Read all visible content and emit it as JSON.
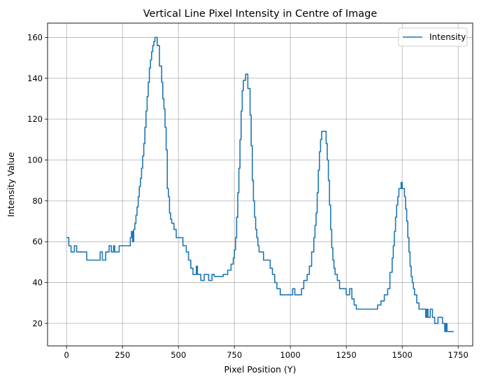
{
  "chart_data": {
    "type": "line",
    "title": "Vertical Line Pixel Intensity in Centre of Image",
    "xlabel": "Pixel Position (Y)",
    "ylabel": "Intensity Value",
    "xlim": [
      -85,
      1815
    ],
    "ylim": [
      9,
      167
    ],
    "xticks": [
      0,
      250,
      500,
      750,
      1000,
      1250,
      1500,
      1750
    ],
    "yticks": [
      20,
      40,
      60,
      80,
      100,
      120,
      140,
      160
    ],
    "grid": true,
    "legend_position": "top-right",
    "series": [
      {
        "name": "Intensity",
        "color": "#1f77b4",
        "step_points": [
          [
            0,
            62
          ],
          [
            10,
            62
          ],
          [
            10,
            58
          ],
          [
            20,
            58
          ],
          [
            20,
            55
          ],
          [
            35,
            55
          ],
          [
            35,
            58
          ],
          [
            45,
            58
          ],
          [
            45,
            55
          ],
          [
            90,
            55
          ],
          [
            90,
            51
          ],
          [
            150,
            51
          ],
          [
            150,
            55
          ],
          [
            160,
            55
          ],
          [
            160,
            51
          ],
          [
            175,
            51
          ],
          [
            175,
            55
          ],
          [
            190,
            55
          ],
          [
            190,
            58
          ],
          [
            200,
            58
          ],
          [
            200,
            55
          ],
          [
            210,
            55
          ],
          [
            210,
            58
          ],
          [
            215,
            58
          ],
          [
            215,
            55
          ],
          [
            235,
            55
          ],
          [
            235,
            58
          ],
          [
            285,
            58
          ],
          [
            285,
            62
          ],
          [
            290,
            62
          ],
          [
            290,
            65
          ],
          [
            295,
            65
          ],
          [
            295,
            60
          ],
          [
            300,
            60
          ],
          [
            300,
            66
          ],
          [
            305,
            66
          ],
          [
            305,
            69
          ],
          [
            310,
            69
          ],
          [
            310,
            73
          ],
          [
            315,
            73
          ],
          [
            315,
            77
          ],
          [
            320,
            77
          ],
          [
            320,
            82
          ],
          [
            325,
            82
          ],
          [
            325,
            87
          ],
          [
            330,
            87
          ],
          [
            330,
            91
          ],
          [
            335,
            91
          ],
          [
            335,
            96
          ],
          [
            340,
            96
          ],
          [
            340,
            102
          ],
          [
            345,
            102
          ],
          [
            345,
            108
          ],
          [
            350,
            108
          ],
          [
            350,
            116
          ],
          [
            355,
            116
          ],
          [
            355,
            124
          ],
          [
            360,
            124
          ],
          [
            360,
            131
          ],
          [
            365,
            131
          ],
          [
            365,
            138
          ],
          [
            370,
            138
          ],
          [
            370,
            145
          ],
          [
            375,
            145
          ],
          [
            375,
            149
          ],
          [
            380,
            149
          ],
          [
            380,
            153
          ],
          [
            385,
            153
          ],
          [
            385,
            156
          ],
          [
            390,
            156
          ],
          [
            390,
            158
          ],
          [
            395,
            158
          ],
          [
            395,
            160
          ],
          [
            405,
            160
          ],
          [
            405,
            156
          ],
          [
            415,
            156
          ],
          [
            415,
            146
          ],
          [
            425,
            146
          ],
          [
            425,
            138
          ],
          [
            430,
            138
          ],
          [
            430,
            130
          ],
          [
            435,
            130
          ],
          [
            435,
            125
          ],
          [
            440,
            125
          ],
          [
            440,
            116
          ],
          [
            445,
            116
          ],
          [
            445,
            105
          ],
          [
            450,
            105
          ],
          [
            450,
            86
          ],
          [
            455,
            86
          ],
          [
            455,
            82
          ],
          [
            460,
            82
          ],
          [
            460,
            74
          ],
          [
            465,
            74
          ],
          [
            465,
            71
          ],
          [
            470,
            71
          ],
          [
            470,
            69
          ],
          [
            480,
            69
          ],
          [
            480,
            66
          ],
          [
            490,
            66
          ],
          [
            490,
            62
          ],
          [
            520,
            62
          ],
          [
            520,
            58
          ],
          [
            535,
            58
          ],
          [
            535,
            55
          ],
          [
            545,
            55
          ],
          [
            545,
            51
          ],
          [
            555,
            51
          ],
          [
            555,
            47
          ],
          [
            565,
            47
          ],
          [
            565,
            44
          ],
          [
            580,
            44
          ],
          [
            580,
            48
          ],
          [
            585,
            48
          ],
          [
            585,
            44
          ],
          [
            600,
            44
          ],
          [
            600,
            41
          ],
          [
            615,
            41
          ],
          [
            615,
            44
          ],
          [
            635,
            44
          ],
          [
            635,
            41
          ],
          [
            650,
            41
          ],
          [
            650,
            44
          ],
          [
            660,
            44
          ],
          [
            660,
            43
          ],
          [
            700,
            43
          ],
          [
            700,
            44
          ],
          [
            720,
            44
          ],
          [
            720,
            46
          ],
          [
            735,
            46
          ],
          [
            735,
            49
          ],
          [
            745,
            49
          ],
          [
            745,
            52
          ],
          [
            750,
            52
          ],
          [
            750,
            56
          ],
          [
            755,
            56
          ],
          [
            755,
            62
          ],
          [
            760,
            62
          ],
          [
            760,
            72
          ],
          [
            765,
            72
          ],
          [
            765,
            84
          ],
          [
            770,
            84
          ],
          [
            770,
            96
          ],
          [
            775,
            96
          ],
          [
            775,
            110
          ],
          [
            780,
            110
          ],
          [
            780,
            124
          ],
          [
            785,
            124
          ],
          [
            785,
            134
          ],
          [
            790,
            134
          ],
          [
            790,
            139
          ],
          [
            800,
            139
          ],
          [
            800,
            142
          ],
          [
            810,
            142
          ],
          [
            810,
            135
          ],
          [
            820,
            135
          ],
          [
            820,
            122
          ],
          [
            825,
            122
          ],
          [
            825,
            107
          ],
          [
            830,
            107
          ],
          [
            830,
            90
          ],
          [
            835,
            90
          ],
          [
            835,
            80
          ],
          [
            840,
            80
          ],
          [
            840,
            72
          ],
          [
            845,
            72
          ],
          [
            845,
            66
          ],
          [
            850,
            66
          ],
          [
            850,
            62
          ],
          [
            855,
            62
          ],
          [
            855,
            58
          ],
          [
            860,
            58
          ],
          [
            860,
            55
          ],
          [
            880,
            55
          ],
          [
            880,
            51
          ],
          [
            910,
            51
          ],
          [
            910,
            47
          ],
          [
            920,
            47
          ],
          [
            920,
            44
          ],
          [
            930,
            44
          ],
          [
            930,
            40
          ],
          [
            940,
            40
          ],
          [
            940,
            37
          ],
          [
            955,
            37
          ],
          [
            955,
            34
          ],
          [
            1010,
            34
          ],
          [
            1010,
            37
          ],
          [
            1020,
            37
          ],
          [
            1020,
            34
          ],
          [
            1050,
            34
          ],
          [
            1050,
            37
          ],
          [
            1060,
            37
          ],
          [
            1060,
            41
          ],
          [
            1075,
            41
          ],
          [
            1075,
            44
          ],
          [
            1085,
            44
          ],
          [
            1085,
            48
          ],
          [
            1095,
            48
          ],
          [
            1095,
            55
          ],
          [
            1105,
            55
          ],
          [
            1105,
            62
          ],
          [
            1110,
            62
          ],
          [
            1110,
            68
          ],
          [
            1115,
            68
          ],
          [
            1115,
            74
          ],
          [
            1120,
            74
          ],
          [
            1120,
            84
          ],
          [
            1125,
            84
          ],
          [
            1125,
            95
          ],
          [
            1130,
            95
          ],
          [
            1130,
            104
          ],
          [
            1135,
            104
          ],
          [
            1135,
            110
          ],
          [
            1140,
            110
          ],
          [
            1140,
            114
          ],
          [
            1160,
            114
          ],
          [
            1160,
            108
          ],
          [
            1165,
            108
          ],
          [
            1165,
            100
          ],
          [
            1170,
            100
          ],
          [
            1170,
            90
          ],
          [
            1175,
            90
          ],
          [
            1175,
            78
          ],
          [
            1180,
            78
          ],
          [
            1180,
            66
          ],
          [
            1185,
            66
          ],
          [
            1185,
            57
          ],
          [
            1190,
            57
          ],
          [
            1190,
            51
          ],
          [
            1195,
            51
          ],
          [
            1195,
            47
          ],
          [
            1200,
            47
          ],
          [
            1200,
            44
          ],
          [
            1210,
            44
          ],
          [
            1210,
            41
          ],
          [
            1220,
            41
          ],
          [
            1220,
            37
          ],
          [
            1250,
            37
          ],
          [
            1250,
            34
          ],
          [
            1265,
            34
          ],
          [
            1265,
            37
          ],
          [
            1275,
            37
          ],
          [
            1275,
            32
          ],
          [
            1285,
            32
          ],
          [
            1285,
            29
          ],
          [
            1295,
            29
          ],
          [
            1295,
            27
          ],
          [
            1390,
            27
          ],
          [
            1390,
            29
          ],
          [
            1405,
            29
          ],
          [
            1405,
            31
          ],
          [
            1420,
            31
          ],
          [
            1420,
            34
          ],
          [
            1435,
            34
          ],
          [
            1435,
            37
          ],
          [
            1445,
            37
          ],
          [
            1445,
            45
          ],
          [
            1455,
            45
          ],
          [
            1455,
            52
          ],
          [
            1460,
            52
          ],
          [
            1460,
            58
          ],
          [
            1465,
            58
          ],
          [
            1465,
            65
          ],
          [
            1470,
            65
          ],
          [
            1470,
            72
          ],
          [
            1475,
            72
          ],
          [
            1475,
            78
          ],
          [
            1480,
            78
          ],
          [
            1480,
            82
          ],
          [
            1485,
            82
          ],
          [
            1485,
            86
          ],
          [
            1495,
            86
          ],
          [
            1495,
            89
          ],
          [
            1500,
            89
          ],
          [
            1500,
            86
          ],
          [
            1510,
            86
          ],
          [
            1510,
            82
          ],
          [
            1515,
            82
          ],
          [
            1515,
            76
          ],
          [
            1520,
            76
          ],
          [
            1520,
            70
          ],
          [
            1525,
            70
          ],
          [
            1525,
            62
          ],
          [
            1530,
            62
          ],
          [
            1530,
            55
          ],
          [
            1535,
            55
          ],
          [
            1535,
            48
          ],
          [
            1540,
            48
          ],
          [
            1540,
            43
          ],
          [
            1545,
            43
          ],
          [
            1545,
            40
          ],
          [
            1550,
            40
          ],
          [
            1550,
            37
          ],
          [
            1555,
            37
          ],
          [
            1555,
            34
          ],
          [
            1565,
            34
          ],
          [
            1565,
            30
          ],
          [
            1575,
            30
          ],
          [
            1575,
            27
          ],
          [
            1605,
            27
          ],
          [
            1605,
            23
          ],
          [
            1610,
            23
          ],
          [
            1610,
            27
          ],
          [
            1615,
            27
          ],
          [
            1615,
            23
          ],
          [
            1625,
            23
          ],
          [
            1625,
            27
          ],
          [
            1635,
            27
          ],
          [
            1635,
            23
          ],
          [
            1645,
            23
          ],
          [
            1645,
            20
          ],
          [
            1660,
            20
          ],
          [
            1660,
            23
          ],
          [
            1680,
            23
          ],
          [
            1680,
            20
          ],
          [
            1690,
            20
          ],
          [
            1690,
            16
          ],
          [
            1695,
            16
          ],
          [
            1695,
            20
          ],
          [
            1700,
            20
          ],
          [
            1700,
            16
          ],
          [
            1730,
            16
          ]
        ]
      }
    ]
  }
}
